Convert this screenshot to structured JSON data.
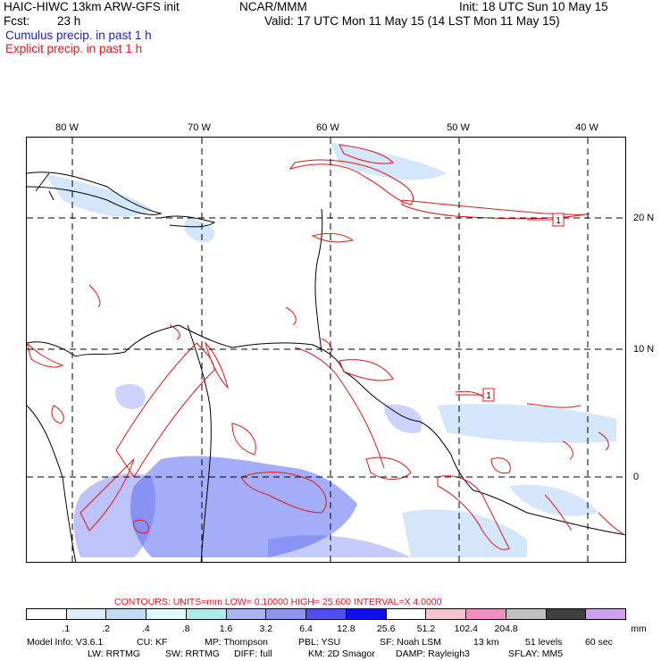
{
  "header": {
    "model": "HAIC-HIWC 13km ARW-GFS init",
    "org": "NCAR/MMM",
    "init": "Init: 18 UTC Sun 10 May 15",
    "fcst_label": "Fcst:",
    "fcst_value": "23 h",
    "valid": "Valid: 17 UTC Mon 11 May 15 (14 LST Mon 11 May 15)",
    "cumulus": "Cumulus precip. in past 1 h",
    "explicit": "Explicit precip. in past 1 h"
  },
  "map": {
    "lon_labels": [
      "80 W",
      "70 W",
      "60 W",
      "50 W",
      "40 W"
    ],
    "lat_labels": [
      "20 N",
      "10 N",
      "0"
    ],
    "markers": [
      "1",
      "1"
    ],
    "colors": {
      "cumulus": "#5a6af0",
      "explicit": "#e01818",
      "coast": "#000000"
    }
  },
  "contours": {
    "text": "CONTOURS:  UNITS=mm  LOW= 0.10000     HIGH=  25.600     INTERVAL=X  4.0000"
  },
  "colorbar": {
    "colors": [
      "#ffffff",
      "#dcecfa",
      "#c2dcf6",
      "#e0fafa",
      "#aeeaea",
      "#a8b4f4",
      "#8a96f0",
      "#5050f0",
      "#1010f0",
      "#ffffff",
      "#f4c4d0",
      "#f090c0",
      "#c0c0c0",
      "#404040",
      "#d0a0f0"
    ],
    "labels": [
      ".1",
      ".2",
      ".4",
      ".8",
      "1.6",
      "3.2",
      "6.4",
      "12.8",
      "25.6",
      "51.2",
      "102.4",
      "204.8"
    ],
    "unit": "mm"
  },
  "model_info": {
    "line1": [
      "Model Info: V3.6.1",
      "CU: KF",
      "MP: Thompson",
      "PBL: YSU",
      "SF: Noah LSM",
      "13 km",
      "51 levels",
      "60 sec"
    ],
    "line2": [
      "LW: RRTMG",
      "SW: RRTMG",
      "DIFF: full",
      "KM: 2D Smagor",
      "DAMP: Rayleigh3",
      "SFLAY: MM5"
    ]
  }
}
